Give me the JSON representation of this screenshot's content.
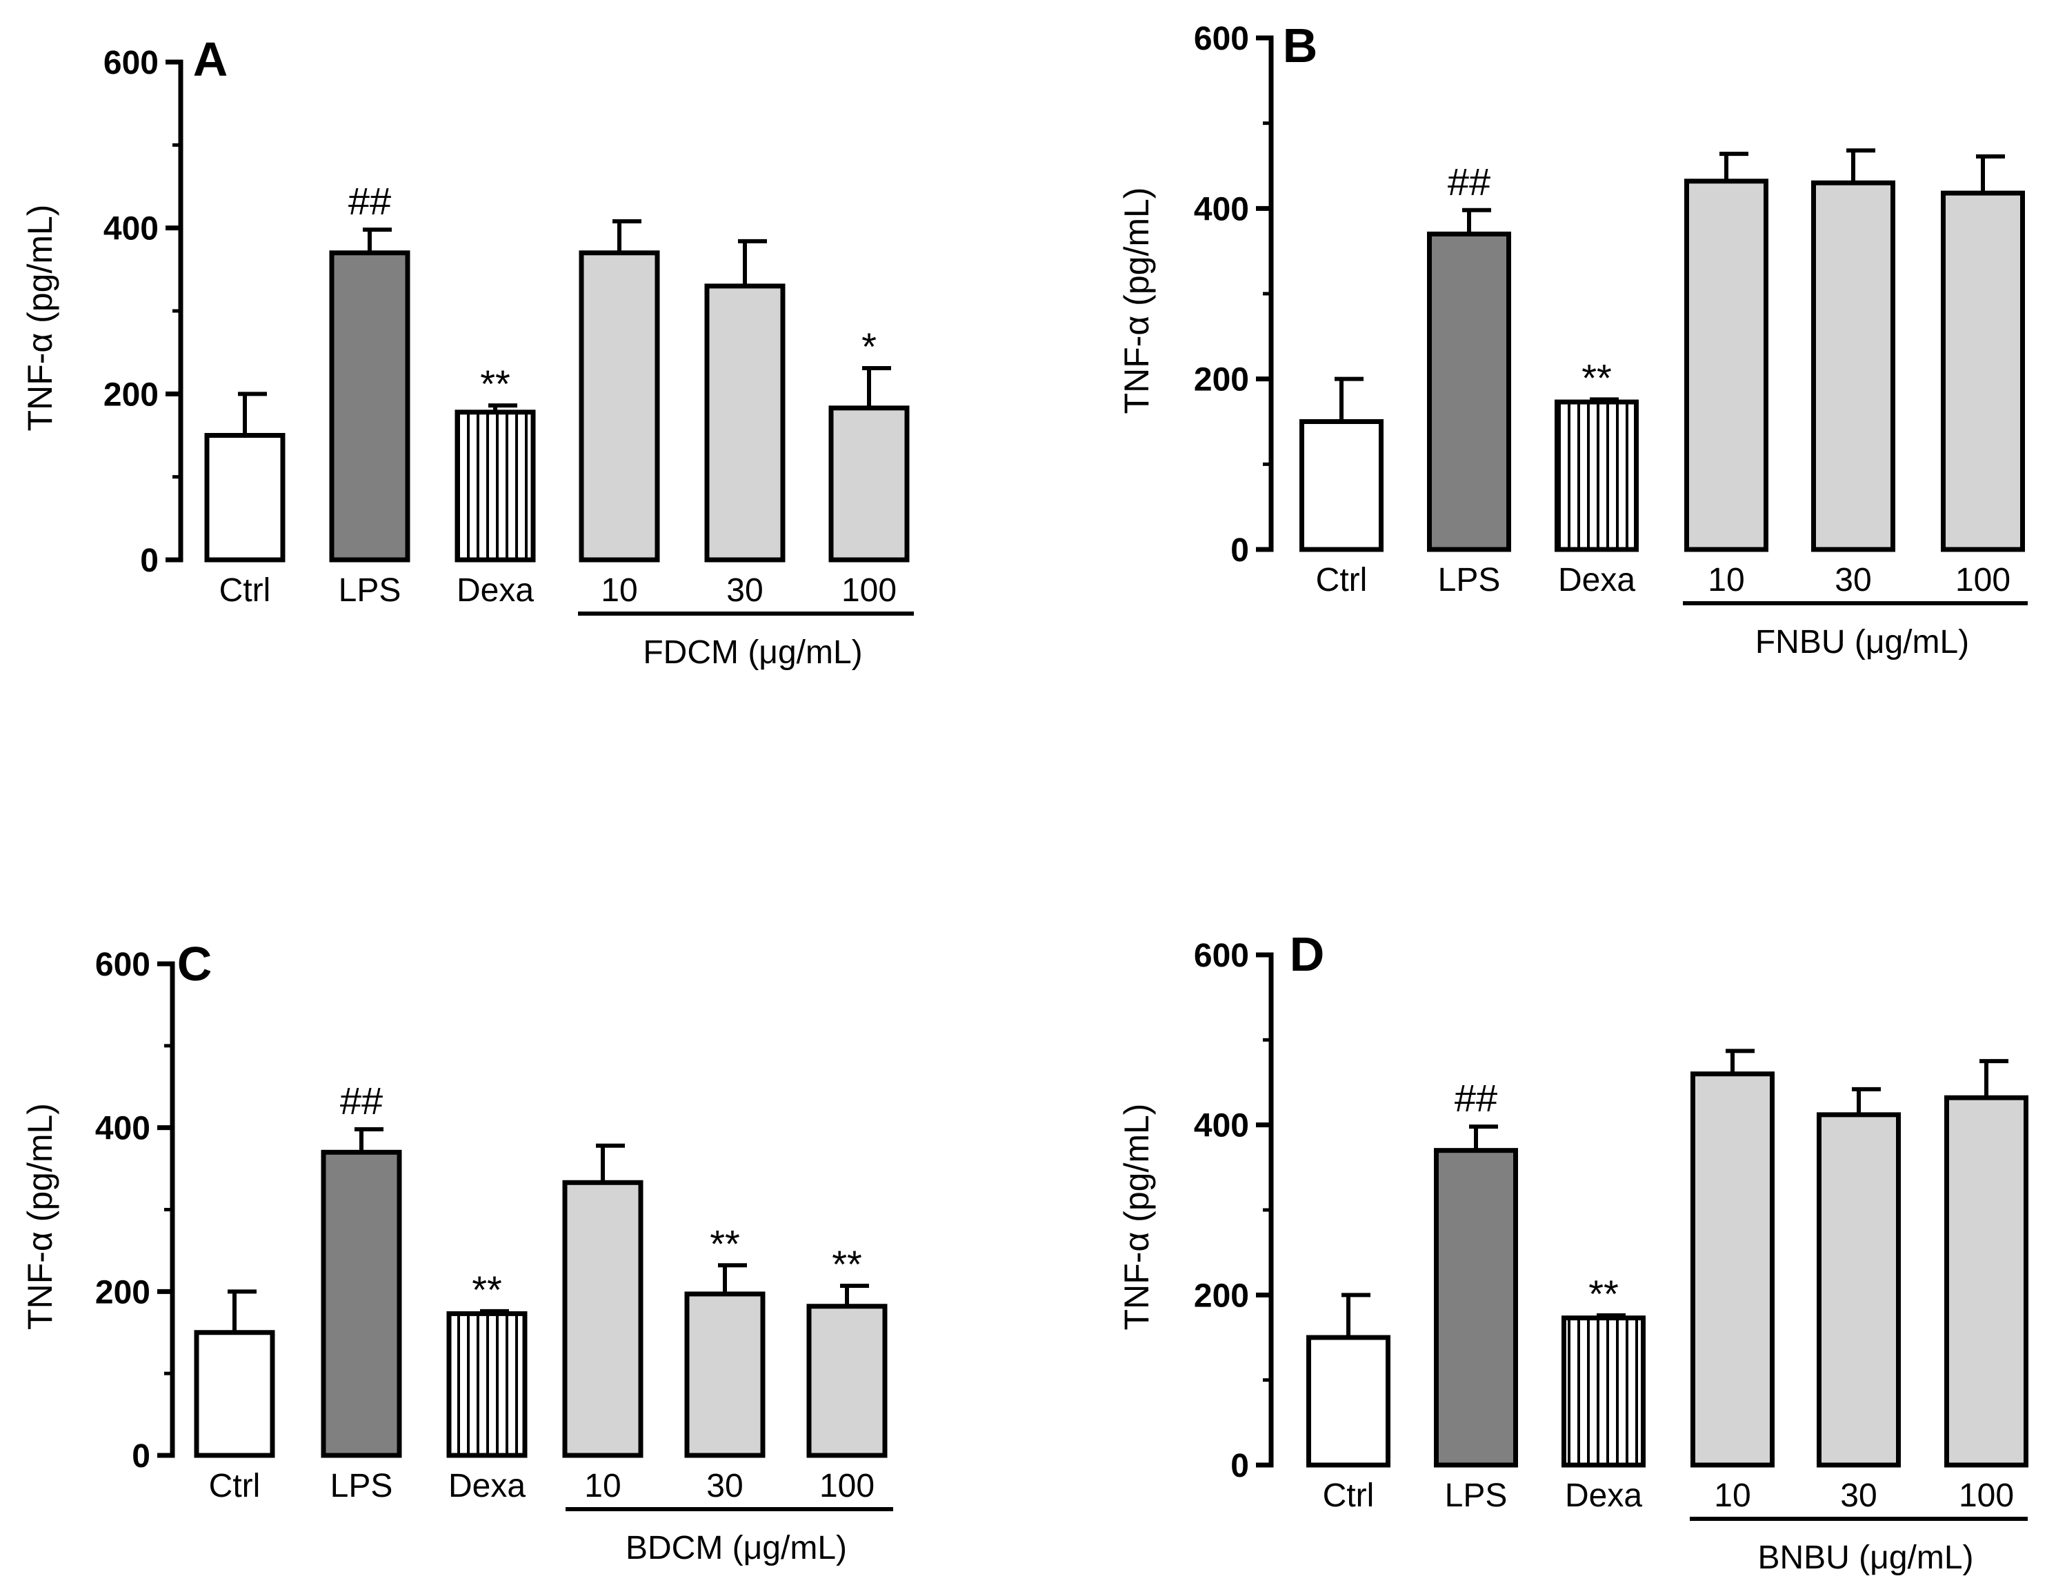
{
  "chart_data": [
    {
      "type": "bar",
      "panel": "A",
      "ylabel": "TNF-α (pg/mL)",
      "ylim": [
        0,
        600
      ],
      "yticks": [
        "0",
        "200",
        "400",
        "600"
      ],
      "categories": [
        "Ctrl",
        "LPS",
        "Dexa",
        "10",
        "30",
        "100"
      ],
      "values": [
        150,
        370,
        178,
        370,
        330,
        183
      ],
      "errors": [
        50,
        28,
        8,
        38,
        54,
        48
      ],
      "fills": [
        "white",
        "dark",
        "striped",
        "light",
        "light",
        "light"
      ],
      "annotations": [
        "",
        "##",
        "**",
        "",
        "",
        "*"
      ],
      "group_label": "FDCM (μg/mL)"
    },
    {
      "type": "bar",
      "panel": "B",
      "ylabel": "TNF-α (pg/mL)",
      "ylim": [
        0,
        600
      ],
      "yticks": [
        "0",
        "200",
        "400",
        "600"
      ],
      "categories": [
        "Ctrl",
        "LPS",
        "Dexa",
        "10",
        "30",
        "100"
      ],
      "values": [
        150,
        370,
        173,
        432,
        430,
        418
      ],
      "errors": [
        50,
        28,
        3,
        32,
        38,
        43
      ],
      "fills": [
        "white",
        "dark",
        "striped",
        "light",
        "light",
        "light"
      ],
      "annotations": [
        "",
        "##",
        "**",
        "",
        "",
        ""
      ],
      "group_label": "FNBU (μg/mL)"
    },
    {
      "type": "bar",
      "panel": "C",
      "ylabel": "TNF-α (pg/mL)",
      "ylim": [
        0,
        600
      ],
      "yticks": [
        "0",
        "200",
        "400",
        "600"
      ],
      "categories": [
        "Ctrl",
        "LPS",
        "Dexa",
        "10",
        "30",
        "100"
      ],
      "values": [
        150,
        370,
        173,
        333,
        197,
        182
      ],
      "errors": [
        50,
        28,
        3,
        45,
        35,
        25
      ],
      "fills": [
        "white",
        "dark",
        "striped",
        "light",
        "light",
        "light"
      ],
      "annotations": [
        "",
        "##",
        "**",
        "",
        "**",
        "**"
      ],
      "group_label": "BDCM (μg/mL)"
    },
    {
      "type": "bar",
      "panel": "D",
      "ylabel": "TNF-α (pg/mL)",
      "ylim": [
        0,
        600
      ],
      "yticks": [
        "0",
        "200",
        "400",
        "600"
      ],
      "categories": [
        "Ctrl",
        "LPS",
        "Dexa",
        "10",
        "30",
        "100"
      ],
      "values": [
        150,
        370,
        173,
        460,
        412,
        432
      ],
      "errors": [
        50,
        28,
        3,
        27,
        30,
        43
      ],
      "fills": [
        "white",
        "dark",
        "striped",
        "light",
        "light",
        "light"
      ],
      "annotations": [
        "",
        "##",
        "**",
        "",
        "",
        ""
      ],
      "group_label": "BNBU (μg/mL)"
    }
  ],
  "colors": {
    "white": "#ffffff",
    "dark": "#808080",
    "light": "#d4d4d4",
    "stripe": "#000000",
    "stroke": "#000000"
  }
}
